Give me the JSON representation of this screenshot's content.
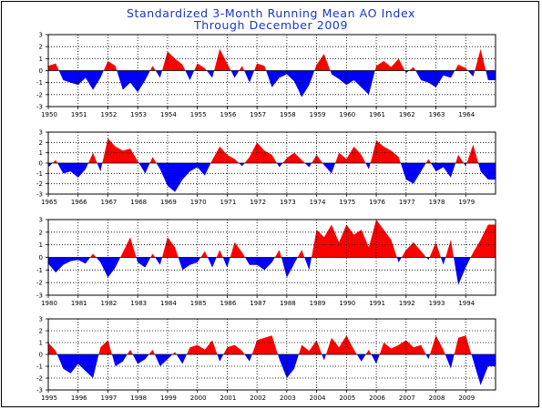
{
  "title_line1": "Standardized 3-Month Running Mean AO Index",
  "title_line2": "Through December 2009",
  "colors": {
    "positive": "#ff0000",
    "negative": "#0000ff",
    "title": "#1a33cc",
    "grid": "#000000"
  },
  "chart_data": [
    {
      "type": "area",
      "xlim": [
        1950,
        1965
      ],
      "ylim": [
        -3,
        3
      ],
      "yticks": [
        3,
        2,
        1,
        0,
        -1,
        -2,
        -3
      ],
      "grid": true,
      "xticks": [
        1950,
        1951,
        1952,
        1953,
        1954,
        1955,
        1956,
        1957,
        1958,
        1959,
        1960,
        1961,
        1962,
        1963,
        1964
      ],
      "xtick_labels": [
        "1950",
        "1951",
        "1952",
        "1953",
        "1954",
        "1955",
        "1956",
        "1957",
        "1958",
        "1959",
        "1960",
        "1961",
        "1962",
        "1963",
        "1964"
      ],
      "x": [
        1950.0,
        1950.25,
        1950.5,
        1950.75,
        1951.0,
        1951.25,
        1951.5,
        1951.75,
        1952.0,
        1952.25,
        1952.5,
        1952.75,
        1953.0,
        1953.25,
        1953.5,
        1953.75,
        1954.0,
        1954.25,
        1954.5,
        1954.75,
        1955.0,
        1955.25,
        1955.5,
        1955.75,
        1956.0,
        1956.25,
        1956.5,
        1956.75,
        1957.0,
        1957.25,
        1957.5,
        1957.75,
        1958.0,
        1958.25,
        1958.5,
        1958.75,
        1959.0,
        1959.25,
        1959.5,
        1959.75,
        1960.0,
        1960.25,
        1960.5,
        1960.75,
        1961.0,
        1961.25,
        1961.5,
        1961.75,
        1962.0,
        1962.25,
        1962.5,
        1962.75,
        1963.0,
        1963.25,
        1963.5,
        1963.75,
        1964.0,
        1964.25,
        1964.5,
        1964.75
      ],
      "y": [
        0.4,
        0.6,
        -0.8,
        -1.0,
        -1.2,
        -0.6,
        -1.6,
        -0.6,
        0.8,
        0.4,
        -1.6,
        -1.0,
        -1.8,
        -0.8,
        0.4,
        -0.6,
        1.6,
        1.0,
        0.5,
        -0.8,
        0.6,
        0.2,
        -0.6,
        1.8,
        0.6,
        -0.6,
        0.4,
        -1.0,
        0.6,
        0.4,
        -1.4,
        -0.6,
        -0.3,
        -0.9,
        -2.2,
        -1.2,
        0.5,
        1.4,
        -0.3,
        -0.7,
        -1.2,
        -0.8,
        -1.4,
        -2.0,
        0.4,
        0.8,
        0.3,
        1.0,
        -0.2,
        0.3,
        -0.8,
        -1.0,
        -1.4,
        -0.4,
        -0.6,
        0.5,
        0.2,
        -0.5,
        1.8,
        -0.8
      ]
    },
    {
      "type": "area",
      "xlim": [
        1965,
        1980
      ],
      "ylim": [
        -3,
        3
      ],
      "yticks": [
        3,
        2,
        1,
        0,
        -1,
        -2,
        -3
      ],
      "grid": true,
      "xticks": [
        1965,
        1966,
        1967,
        1968,
        1969,
        1970,
        1971,
        1972,
        1973,
        1974,
        1975,
        1976,
        1977,
        1978,
        1979
      ],
      "xtick_labels": [
        "1965",
        "1966",
        "1967",
        "1968",
        "1969",
        "1970",
        "1971",
        "1972",
        "1973",
        "1974",
        "1975",
        "1976",
        "1977",
        "1978",
        "1979"
      ],
      "x": [
        1965.0,
        1965.25,
        1965.5,
        1965.75,
        1966.0,
        1966.25,
        1966.5,
        1966.75,
        1967.0,
        1967.25,
        1967.5,
        1967.75,
        1968.0,
        1968.25,
        1968.5,
        1968.75,
        1969.0,
        1969.25,
        1969.5,
        1969.75,
        1970.0,
        1970.25,
        1970.5,
        1970.75,
        1971.0,
        1971.25,
        1971.5,
        1971.75,
        1972.0,
        1972.25,
        1972.5,
        1972.75,
        1973.0,
        1973.25,
        1973.5,
        1973.75,
        1974.0,
        1974.25,
        1974.5,
        1974.75,
        1975.0,
        1975.25,
        1975.5,
        1975.75,
        1976.0,
        1976.25,
        1976.5,
        1976.75,
        1977.0,
        1977.25,
        1977.5,
        1977.75,
        1978.0,
        1978.25,
        1978.5,
        1978.75,
        1979.0,
        1979.25,
        1979.5,
        1979.75
      ],
      "y": [
        -0.4,
        0.3,
        -1.0,
        -0.8,
        -1.4,
        -0.6,
        1.0,
        -0.8,
        2.4,
        1.6,
        1.2,
        1.4,
        0.2,
        -1.0,
        0.6,
        -0.6,
        -2.2,
        -2.8,
        -1.6,
        -0.8,
        -0.4,
        -1.2,
        0.3,
        1.6,
        0.8,
        0.4,
        -0.3,
        0.6,
        2.0,
        1.2,
        0.8,
        -0.4,
        0.5,
        1.0,
        0.3,
        -0.4,
        0.8,
        -0.2,
        -1.0,
        1.0,
        0.4,
        1.6,
        0.8,
        -0.6,
        2.2,
        1.6,
        1.2,
        0.6,
        -1.6,
        -2.0,
        -0.8,
        0.4,
        -0.8,
        -0.4,
        -1.4,
        0.8,
        -0.3,
        1.8,
        -0.8,
        -1.6
      ]
    },
    {
      "type": "area",
      "xlim": [
        1980,
        1995
      ],
      "ylim": [
        -3,
        3
      ],
      "yticks": [
        3,
        2,
        1,
        0,
        -1,
        -2,
        -3
      ],
      "grid": true,
      "xticks": [
        1980,
        1981,
        1982,
        1983,
        1984,
        1985,
        1986,
        1987,
        1988,
        1989,
        1990,
        1991,
        1992,
        1993,
        1994
      ],
      "xtick_labels": [
        "1980",
        "1981",
        "1982",
        "1983",
        "1984",
        "1985",
        "1986",
        "1987",
        "1988",
        "1989",
        "1990",
        "1991",
        "1992",
        "1993",
        "1994"
      ],
      "x": [
        1980.0,
        1980.25,
        1980.5,
        1980.75,
        1981.0,
        1981.25,
        1981.5,
        1981.75,
        1982.0,
        1982.25,
        1982.5,
        1982.75,
        1983.0,
        1983.25,
        1983.5,
        1983.75,
        1984.0,
        1984.25,
        1984.5,
        1984.75,
        1985.0,
        1985.25,
        1985.5,
        1985.75,
        1986.0,
        1986.25,
        1986.5,
        1986.75,
        1987.0,
        1987.25,
        1987.5,
        1987.75,
        1988.0,
        1988.25,
        1988.5,
        1988.75,
        1989.0,
        1989.25,
        1989.5,
        1989.75,
        1990.0,
        1990.25,
        1990.5,
        1990.75,
        1991.0,
        1991.25,
        1991.5,
        1991.75,
        1992.0,
        1992.25,
        1992.5,
        1992.75,
        1993.0,
        1993.25,
        1993.5,
        1993.75,
        1994.0,
        1994.25,
        1994.5,
        1994.75
      ],
      "y": [
        -0.5,
        -1.2,
        -0.6,
        -0.3,
        -0.2,
        -0.5,
        0.3,
        -0.4,
        -1.6,
        -0.8,
        0.4,
        1.6,
        -0.4,
        -0.8,
        0.3,
        -0.6,
        1.6,
        0.8,
        -1.0,
        -0.6,
        -0.4,
        0.5,
        -0.8,
        0.6,
        -0.8,
        1.2,
        0.4,
        -0.6,
        -0.6,
        -1.0,
        -0.4,
        0.6,
        -1.6,
        -0.5,
        0.6,
        -1.0,
        2.2,
        1.6,
        2.6,
        1.2,
        2.6,
        1.8,
        2.2,
        0.8,
        3.0,
        2.2,
        1.4,
        -0.4,
        0.6,
        1.2,
        0.5,
        -0.2,
        1.2,
        -0.6,
        1.4,
        -2.2,
        -0.8,
        0.4,
        1.4,
        2.6
      ]
    },
    {
      "type": "area",
      "xlim": [
        1995,
        2010
      ],
      "ylim": [
        -3,
        3
      ],
      "yticks": [
        3,
        2,
        1,
        0,
        -1,
        -2,
        -3
      ],
      "grid": true,
      "xticks": [
        1995,
        1996,
        1997,
        1998,
        1999,
        2000,
        2001,
        2002,
        2003,
        2004,
        2005,
        2006,
        2007,
        2008,
        2009
      ],
      "xtick_labels": [
        "1995",
        "1996",
        "1997",
        "1998",
        "1999",
        "2000",
        "2001",
        "2002",
        "2003",
        "2004",
        "2005",
        "2006",
        "2007",
        "2008",
        "2009"
      ],
      "x": [
        1995.0,
        1995.25,
        1995.5,
        1995.75,
        1996.0,
        1996.25,
        1996.5,
        1996.75,
        1997.0,
        1997.25,
        1997.5,
        1997.75,
        1998.0,
        1998.25,
        1998.5,
        1998.75,
        1999.0,
        1999.25,
        1999.5,
        1999.75,
        2000.0,
        2000.25,
        2000.5,
        2000.75,
        2001.0,
        2001.25,
        2001.5,
        2001.75,
        2002.0,
        2002.25,
        2002.5,
        2002.75,
        2003.0,
        2003.25,
        2003.5,
        2003.75,
        2004.0,
        2004.25,
        2004.5,
        2004.75,
        2005.0,
        2005.25,
        2005.5,
        2005.75,
        2006.0,
        2006.25,
        2006.5,
        2006.75,
        2007.0,
        2007.25,
        2007.5,
        2007.75,
        2008.0,
        2008.25,
        2008.5,
        2008.75,
        2009.0,
        2009.25,
        2009.5,
        2009.75
      ],
      "y": [
        1.0,
        0.3,
        -1.2,
        -1.6,
        -0.8,
        -1.4,
        -2.0,
        0.6,
        1.2,
        -1.0,
        -0.6,
        0.4,
        -0.8,
        -0.4,
        0.4,
        -1.0,
        -0.4,
        0.2,
        -0.8,
        0.6,
        0.8,
        0.4,
        1.2,
        -0.6,
        0.6,
        0.8,
        0.3,
        -0.6,
        1.2,
        1.4,
        1.6,
        -0.4,
        -2.0,
        -1.2,
        0.8,
        0.3,
        1.2,
        -0.5,
        1.4,
        0.6,
        1.6,
        0.4,
        -0.6,
        0.4,
        -0.8,
        1.0,
        0.5,
        0.8,
        1.2,
        0.6,
        0.8,
        -0.4,
        1.6,
        0.4,
        -1.2,
        1.4,
        1.6,
        -0.5,
        -2.6,
        -1.0
      ]
    }
  ]
}
